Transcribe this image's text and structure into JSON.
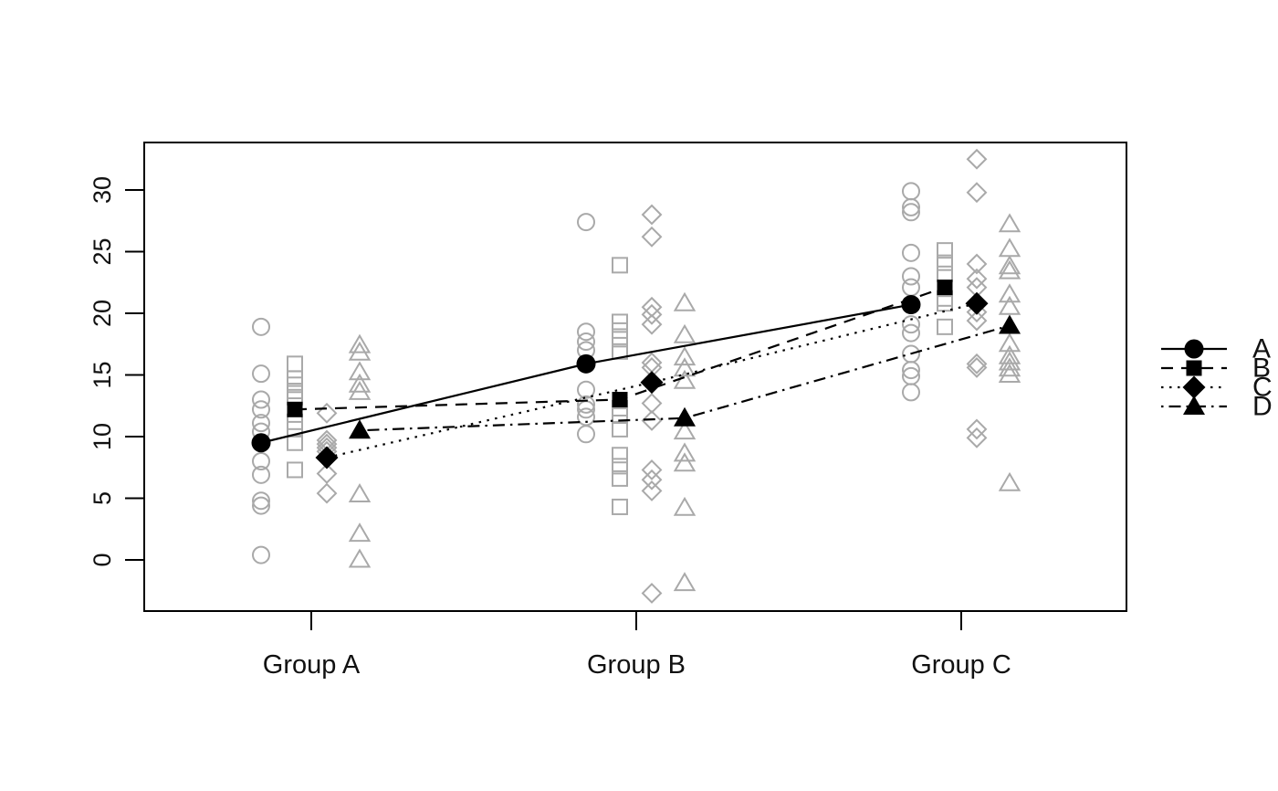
{
  "figure": {
    "background": "#ffffff",
    "jitter_point_color": "#a9a9a9",
    "mean_color": "#000000",
    "axis_color": "#000000"
  },
  "chart_data": {
    "type": "scatter",
    "subtype": "interaction-plot-with-jittered-points-and-group-means",
    "title": "",
    "xlabel": "",
    "ylabel": "",
    "x_categories": [
      "Group A",
      "Group B",
      "Group C"
    ],
    "y_ticks": [
      0,
      5,
      10,
      15,
      20,
      25,
      30
    ],
    "ylim": [
      -4.2,
      33.9
    ],
    "grid": false,
    "legend": {
      "position": "right-outside-middle",
      "entries": [
        "A",
        "B",
        "C",
        "D"
      ]
    },
    "series": [
      {
        "name": "A",
        "marker": "circle",
        "line_style": "solid",
        "means": [
          9.5,
          15.9,
          20.7
        ],
        "points": [
          [
            18.9,
            15.1,
            13.0,
            12.2,
            11.1,
            10.4,
            8.0,
            6.9,
            4.8,
            4.4,
            0.4
          ],
          [
            27.4,
            18.5,
            17.7,
            17.0,
            13.8,
            12.6,
            12.2,
            11.6,
            10.2
          ],
          [
            29.9,
            28.6,
            28.2,
            24.9,
            23.0,
            22.1,
            19.1,
            18.4,
            16.7,
            15.4,
            14.9,
            13.6
          ]
        ]
      },
      {
        "name": "B",
        "marker": "square",
        "line_style": "dashed",
        "means": [
          12.2,
          13.0,
          22.1
        ],
        "points": [
          [
            15.9,
            14.7,
            14.2,
            13.7,
            13.2,
            11.2,
            10.6,
            9.5,
            7.3
          ],
          [
            23.9,
            19.3,
            18.6,
            17.9,
            16.9,
            12.3,
            11.7,
            10.6,
            8.5,
            7.6,
            6.6,
            4.3
          ],
          [
            25.1,
            24.1,
            23.2,
            21.2,
            20.8,
            18.9
          ]
        ]
      },
      {
        "name": "C",
        "marker": "diamond",
        "line_style": "dotted",
        "means": [
          8.3,
          14.4,
          20.8
        ],
        "points": [
          [
            11.9,
            9.7,
            9.4,
            9.1,
            8.8,
            7.0,
            5.4
          ],
          [
            28.0,
            26.2,
            20.5,
            19.9,
            19.1,
            16.0,
            15.6,
            12.7,
            11.3,
            7.3,
            6.5,
            5.6,
            -2.7
          ],
          [
            32.5,
            29.8,
            24.0,
            22.8,
            22.1,
            20.1,
            19.4,
            15.9,
            15.6,
            10.6,
            9.9
          ]
        ]
      },
      {
        "name": "D",
        "marker": "triangle",
        "line_style": "dashdot",
        "means": [
          10.5,
          11.5,
          19.0
        ],
        "points": [
          [
            17.4,
            16.8,
            15.2,
            14.2,
            13.6,
            5.3,
            2.1,
            0.0
          ],
          [
            20.8,
            18.2,
            16.4,
            15.5,
            14.5,
            10.4,
            8.6,
            7.8,
            4.2,
            -1.9
          ],
          [
            27.2,
            25.2,
            23.8,
            23.4,
            21.5,
            20.5,
            17.5,
            16.5,
            16.0,
            15.5,
            15.0,
            6.2
          ]
        ]
      }
    ]
  }
}
